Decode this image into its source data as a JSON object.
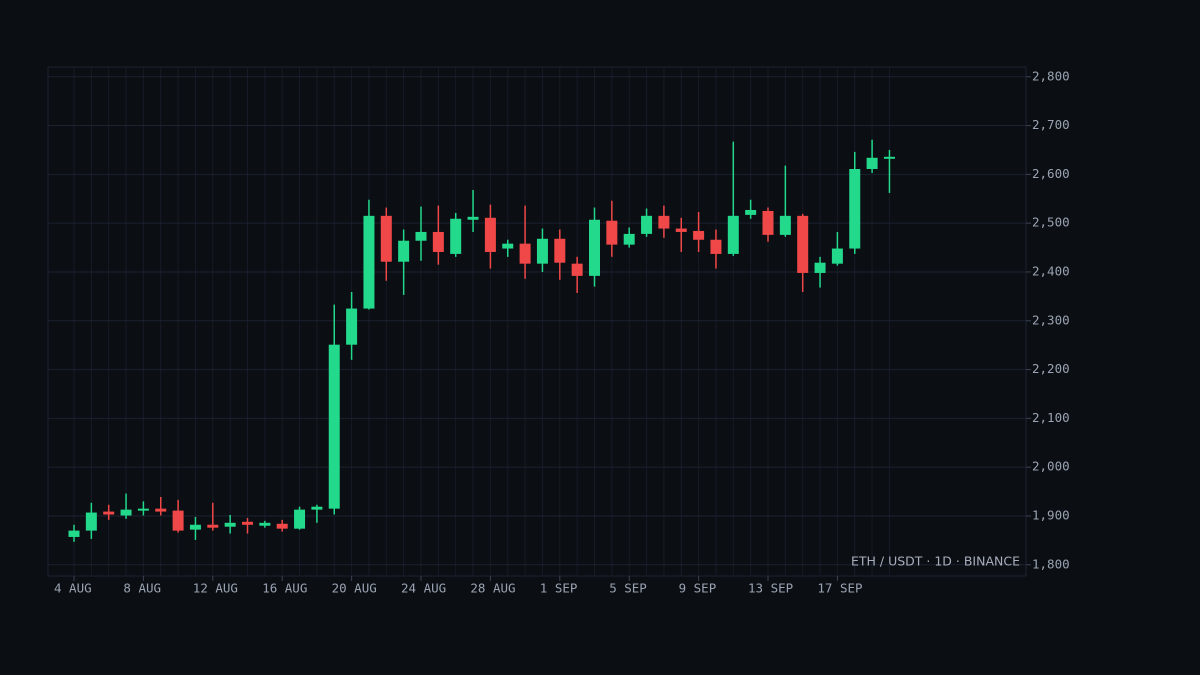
{
  "chart_data": {
    "type": "candlestick",
    "annotation": "ETH / USDT · 1D · BINANCE",
    "categories": [
      "4 AUG",
      null,
      null,
      null,
      "8 AUG",
      null,
      null,
      null,
      "12 AUG",
      null,
      null,
      null,
      "16 AUG",
      null,
      null,
      null,
      "20 AUG",
      null,
      null,
      null,
      "24 AUG",
      null,
      null,
      null,
      "28 AUG",
      null,
      null,
      null,
      "1 SEP",
      null,
      null,
      null,
      "5 SEP",
      null,
      null,
      null,
      "9 SEP",
      null,
      null,
      null,
      "13 SEP",
      null,
      null,
      null,
      "17 SEP",
      null,
      null,
      null
    ],
    "open": [
      1857,
      1870,
      1909,
      1901,
      1911,
      1915,
      1911,
      1872,
      1882,
      1878,
      1888,
      1880,
      1884,
      1874,
      1913,
      1915,
      2251,
      2325,
      2515,
      2421,
      2464,
      2482,
      2437,
      2507,
      2511,
      2448,
      2458,
      2417,
      2468,
      2417,
      2392,
      2505,
      2456,
      2478,
      2515,
      2489,
      2484,
      2466,
      2437,
      2517,
      2525,
      2476,
      2515,
      2398,
      2417,
      2448,
      2611,
      2632
    ],
    "high": [
      1882,
      1927,
      1923,
      1946,
      1930,
      1939,
      1933,
      1898,
      1927,
      1902,
      1896,
      1890,
      1892,
      1919,
      1923,
      2333,
      2359,
      2548,
      2532,
      2487,
      2534,
      2536,
      2521,
      2568,
      2538,
      2466,
      2536,
      2489,
      2487,
      2431,
      2532,
      2546,
      2491,
      2530,
      2536,
      2511,
      2523,
      2487,
      2667,
      2548,
      2532,
      2618,
      2519,
      2431,
      2482,
      2646,
      2671,
      2650
    ],
    "low": [
      1847,
      1853,
      1892,
      1894,
      1901,
      1901,
      1866,
      1851,
      1870,
      1864,
      1864,
      1876,
      1868,
      1872,
      1886,
      1903,
      2220,
      2323,
      2382,
      2353,
      2423,
      2415,
      2431,
      2482,
      2407,
      2431,
      2386,
      2400,
      2384,
      2357,
      2370,
      2431,
      2450,
      2472,
      2470,
      2441,
      2441,
      2407,
      2433,
      2509,
      2462,
      2472,
      2359,
      2368,
      2413,
      2437,
      2603,
      2562
    ],
    "close": [
      1870,
      1907,
      1903,
      1913,
      1915,
      1909,
      1870,
      1882,
      1876,
      1886,
      1882,
      1886,
      1874,
      1913,
      1919,
      2251,
      2325,
      2515,
      2421,
      2464,
      2482,
      2441,
      2509,
      2513,
      2441,
      2458,
      2417,
      2468,
      2419,
      2392,
      2507,
      2456,
      2478,
      2515,
      2489,
      2482,
      2466,
      2437,
      2515,
      2527,
      2476,
      2515,
      2398,
      2419,
      2448,
      2611,
      2634,
      2636
    ],
    "up_color": "#22d98c",
    "down_color": "#f04848",
    "ylim": [
      1777,
      2820
    ],
    "yticks": [
      {
        "value": 1800,
        "label": "1,800"
      },
      {
        "value": 1900,
        "label": "1,900"
      },
      {
        "value": 2000,
        "label": "2,000"
      },
      {
        "value": 2100,
        "label": "2,100"
      },
      {
        "value": 2200,
        "label": "2,200"
      },
      {
        "value": 2300,
        "label": "2,300"
      },
      {
        "value": 2400,
        "label": "2,400"
      },
      {
        "value": 2500,
        "label": "2,500"
      },
      {
        "value": 2600,
        "label": "2,600"
      },
      {
        "value": 2700,
        "label": "2,700"
      },
      {
        "value": 2800,
        "label": "2,800"
      }
    ],
    "grid": true
  }
}
